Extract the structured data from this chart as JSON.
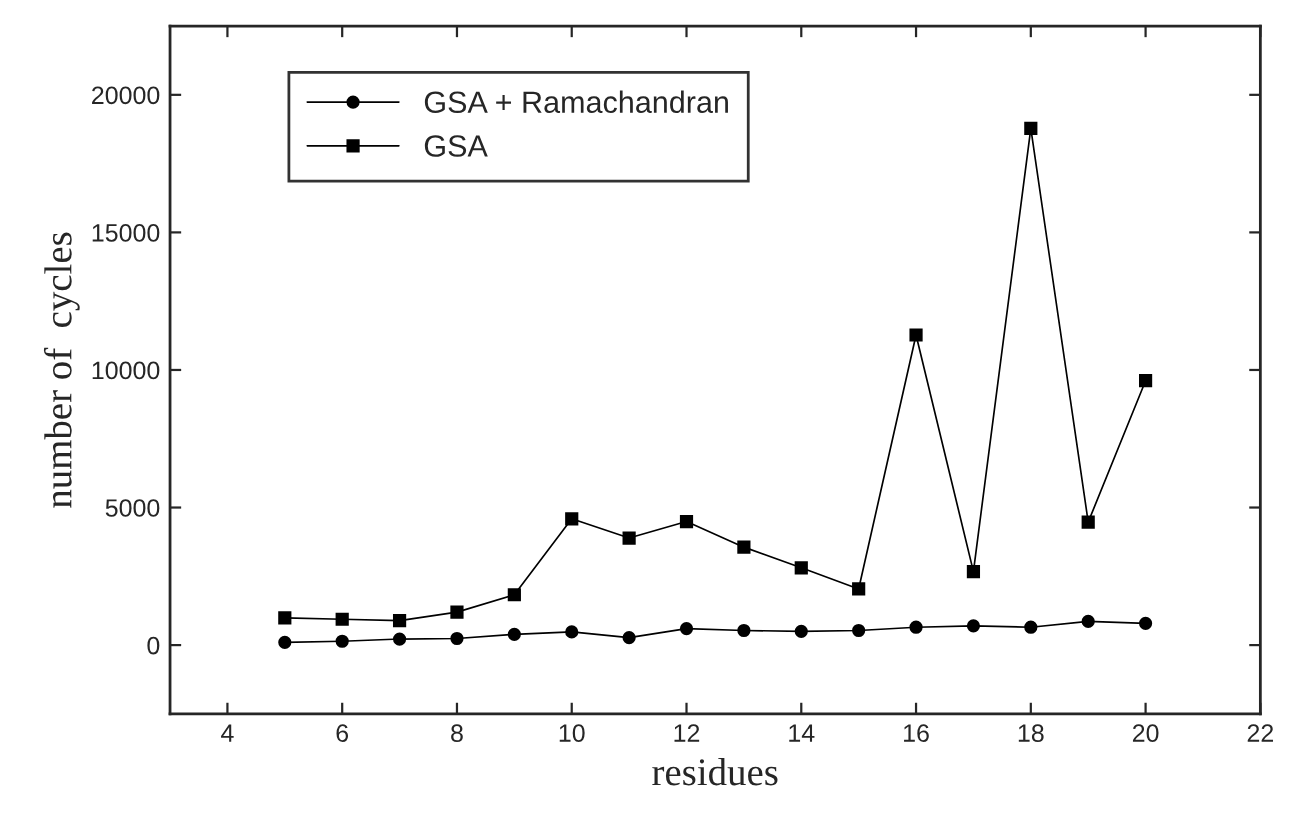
{
  "chart_data": {
    "type": "line",
    "xlabel": "residues",
    "ylabel": "number of  cycles",
    "x": [
      5,
      6,
      7,
      8,
      9,
      10,
      11,
      12,
      13,
      14,
      15,
      16,
      17,
      18,
      19,
      20
    ],
    "series": [
      {
        "name": "GSA + Ramachandran",
        "color": "#000000",
        "marker": "circle",
        "values": [
          100,
          140,
          220,
          240,
          390,
          480,
          270,
          600,
          530,
          500,
          530,
          650,
          700,
          650,
          860,
          790
        ]
      },
      {
        "name": "GSA",
        "color": "#000000",
        "marker": "square",
        "values": [
          990,
          940,
          890,
          1200,
          1830,
          4590,
          3890,
          4490,
          3560,
          2810,
          2040,
          11270,
          2670,
          18780,
          4470,
          9610
        ]
      }
    ],
    "xlim": [
      3,
      22
    ],
    "xticks": [
      4,
      6,
      8,
      10,
      12,
      14,
      16,
      18,
      20,
      22
    ],
    "ylim": [
      -2500,
      22500
    ],
    "yticks": [
      0,
      5000,
      10000,
      15000,
      20000
    ],
    "grid": false,
    "legend": "top left",
    "line_style": "solid"
  }
}
